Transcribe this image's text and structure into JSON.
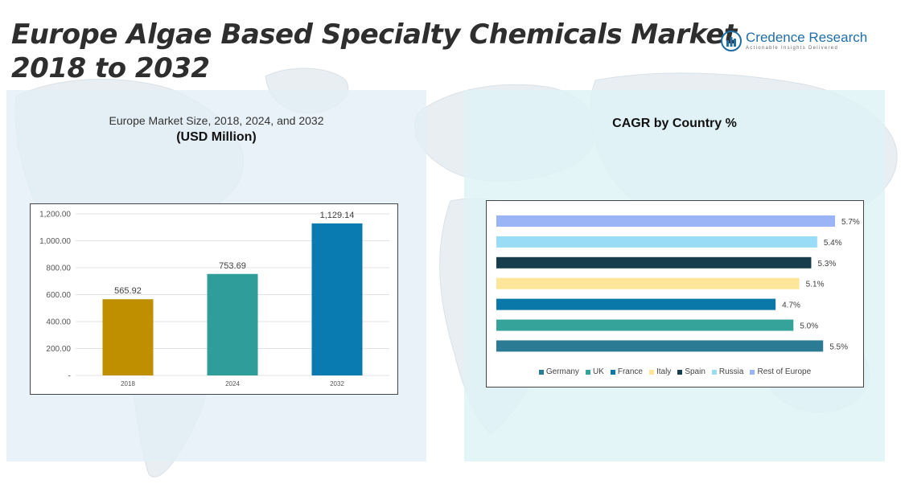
{
  "header": {
    "title_line1": "Europe Algae Based Specialty Chemicals Market",
    "title_line2": "2018 to 2032"
  },
  "logo": {
    "name": "Credence Research",
    "tagline": "Actionable Insights Delivered",
    "color": "#1f6ea6"
  },
  "left_panel": {
    "subtitle": "Europe Market Size, 2018, 2024, and 2032",
    "unit": "(USD Million)"
  },
  "right_panel": {
    "title": "CAGR by Country %"
  },
  "chart_data": [
    {
      "type": "bar",
      "title": "Europe Market Size, 2018, 2024, and 2032",
      "subtitle": "(USD Million)",
      "categories": [
        "2018",
        "2024",
        "2032"
      ],
      "values": [
        565.92,
        753.69,
        1129.14
      ],
      "value_labels": [
        "565.92",
        "753.69",
        "1,129.14"
      ],
      "colors": [
        "#bf8f00",
        "#2f9e9a",
        "#0a7bb0"
      ],
      "ylim": [
        0,
        1200
      ],
      "yticks": [
        0,
        200,
        400,
        600,
        800,
        1000,
        1200
      ],
      "ytick_labels": [
        "-",
        "200.00",
        "400.00",
        "600.00",
        "800.00",
        "1,000.00",
        "1,200.00"
      ],
      "grid": true
    },
    {
      "type": "bar",
      "orientation": "horizontal",
      "title": "CAGR by Country %",
      "series": [
        {
          "name": "Germany",
          "value": 5.5,
          "label": "5.5%",
          "color": "#2c7b95"
        },
        {
          "name": "UK",
          "value": 5.0,
          "label": "5.0%",
          "color": "#36a39a"
        },
        {
          "name": "France",
          "value": 4.7,
          "label": "4.7%",
          "color": "#0a78a8"
        },
        {
          "name": "Italy",
          "value": 5.1,
          "label": "5.1%",
          "color": "#fde69a"
        },
        {
          "name": "Spain",
          "value": 5.3,
          "label": "5.3%",
          "color": "#173d4c"
        },
        {
          "name": "Russia",
          "value": 5.4,
          "label": "5.4%",
          "color": "#99dcf5"
        },
        {
          "name": "Rest of Europe",
          "value": 5.7,
          "label": "5.7%",
          "color": "#9ab4f5"
        }
      ],
      "order_top_to_bottom": [
        "Rest of Europe",
        "Russia",
        "Spain",
        "Italy",
        "France",
        "UK",
        "Germany"
      ],
      "legend_position": "bottom",
      "grid": false
    }
  ]
}
